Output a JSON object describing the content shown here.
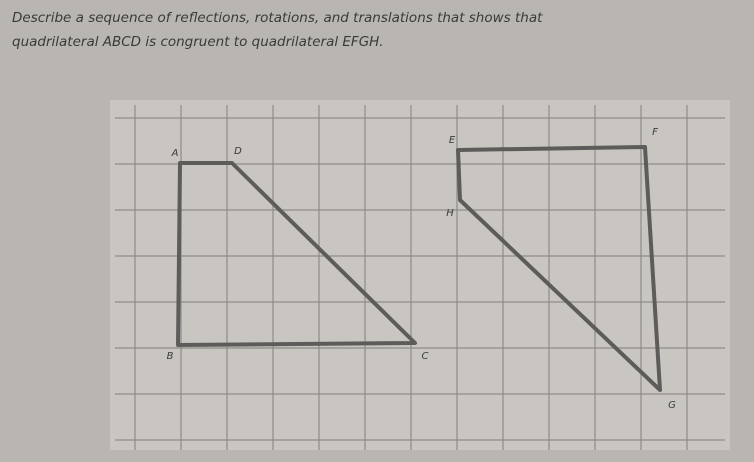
{
  "question": {
    "line1": "Describe a sequence of reflections, rotations, and translations that shows that",
    "line2": "quadrilateral ABCD is congruent to quadrilateral EFGH."
  },
  "vertices": {
    "A": "A",
    "B": "B",
    "C": "C",
    "D": "D",
    "E": "E",
    "F": "F",
    "G": "G",
    "H": "H"
  }
}
